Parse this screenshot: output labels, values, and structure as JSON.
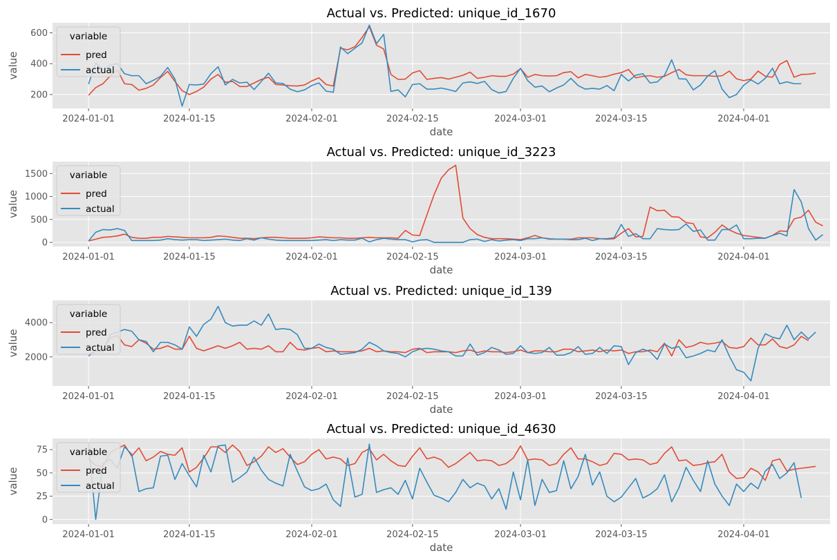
{
  "chart_data": [
    {
      "type": "line",
      "title": "Actual vs. Predicted: unique_id_1670",
      "xlabel": "date",
      "ylabel": "value",
      "x_start": "2024-01-01",
      "x_range": [
        "2023-12-27",
        "2024-04-13"
      ],
      "ylim": [
        110,
        665
      ],
      "yticks": [
        200,
        400,
        600
      ],
      "grid": true,
      "legend": {
        "title": "variable",
        "position": "top-left"
      },
      "series": [
        {
          "name": "pred",
          "color": "#E24A33",
          "values": [
            195,
            245,
            270,
            320,
            360,
            270,
            265,
            228,
            240,
            262,
            310,
            350,
            285,
            225,
            200,
            220,
            248,
            300,
            330,
            280,
            285,
            252,
            252,
            275,
            298,
            312,
            265,
            262,
            257,
            255,
            262,
            288,
            308,
            265,
            255,
            500,
            490,
            510,
            570,
            640,
            520,
            495,
            330,
            298,
            300,
            340,
            355,
            298,
            305,
            310,
            300,
            312,
            325,
            345,
            305,
            312,
            322,
            318,
            318,
            332,
            368,
            312,
            330,
            322,
            320,
            322,
            342,
            348,
            308,
            330,
            322,
            312,
            318,
            332,
            342,
            362,
            308,
            318,
            322,
            312,
            318,
            342,
            362,
            328,
            322,
            322,
            322,
            318,
            322,
            352,
            302,
            290,
            300,
            352,
            318,
            312,
            395,
            420,
            312,
            330,
            332,
            338
          ]
        },
        {
          "name": "actual",
          "color": "#348ABD",
          "values": [
            268,
            405,
            360,
            390,
            400,
            335,
            322,
            322,
            270,
            292,
            318,
            375,
            300,
            125,
            265,
            262,
            268,
            335,
            380,
            262,
            298,
            275,
            280,
            232,
            285,
            338,
            275,
            272,
            235,
            218,
            230,
            258,
            275,
            222,
            215,
            508,
            465,
            500,
            535,
            650,
            530,
            590,
            220,
            230,
            185,
            265,
            270,
            235,
            235,
            242,
            232,
            220,
            275,
            282,
            272,
            285,
            232,
            210,
            220,
            305,
            370,
            290,
            248,
            255,
            218,
            242,
            262,
            305,
            258,
            235,
            240,
            235,
            258,
            225,
            330,
            288,
            325,
            335,
            275,
            282,
            325,
            425,
            302,
            300,
            230,
            262,
            320,
            355,
            235,
            180,
            200,
            260,
            295,
            268,
            305,
            370,
            270,
            282,
            270,
            270
          ]
        }
      ]
    },
    {
      "type": "line",
      "title": "Actual vs. Predicted: unique_id_3223",
      "xlabel": "date",
      "ylabel": "value",
      "x_start": "2024-01-01",
      "x_range": [
        "2023-12-27",
        "2024-04-13"
      ],
      "ylim": [
        -90,
        1760
      ],
      "yticks": [
        0,
        500,
        1000,
        1500
      ],
      "grid": true,
      "legend": {
        "title": "variable",
        "position": "top-left"
      },
      "series": [
        {
          "name": "pred",
          "color": "#E24A33",
          "values": [
            30,
            70,
            110,
            120,
            140,
            180,
            110,
            90,
            90,
            110,
            110,
            130,
            120,
            110,
            100,
            100,
            100,
            110,
            140,
            130,
            110,
            90,
            90,
            80,
            100,
            110,
            110,
            100,
            90,
            90,
            90,
            100,
            120,
            110,
            100,
            100,
            90,
            90,
            100,
            110,
            100,
            100,
            100,
            90,
            260,
            160,
            150,
            600,
            1040,
            1400,
            1580,
            1680,
            530,
            300,
            170,
            110,
            80,
            80,
            80,
            70,
            60,
            100,
            150,
            100,
            80,
            70,
            70,
            70,
            100,
            100,
            100,
            80,
            70,
            80,
            200,
            300,
            120,
            130,
            770,
            690,
            700,
            560,
            550,
            430,
            410,
            120,
            100,
            220,
            380,
            270,
            200,
            150,
            130,
            110,
            90,
            150,
            250,
            240,
            510,
            550,
            700,
            440,
            360
          ]
        },
        {
          "name": "actual",
          "color": "#348ABD",
          "values": [
            30,
            220,
            280,
            270,
            300,
            260,
            40,
            40,
            40,
            40,
            50,
            80,
            60,
            50,
            60,
            60,
            40,
            50,
            60,
            70,
            50,
            40,
            80,
            50,
            100,
            70,
            50,
            40,
            40,
            40,
            40,
            40,
            50,
            60,
            40,
            60,
            50,
            50,
            90,
            10,
            60,
            90,
            70,
            60,
            60,
            10,
            50,
            60,
            0,
            0,
            0,
            0,
            0,
            60,
            70,
            20,
            60,
            30,
            50,
            60,
            40,
            80,
            80,
            100,
            70,
            70,
            70,
            60,
            60,
            90,
            40,
            80,
            80,
            100,
            390,
            130,
            190,
            80,
            80,
            300,
            280,
            270,
            280,
            400,
            240,
            270,
            50,
            50,
            280,
            280,
            380,
            80,
            80,
            90,
            90,
            150,
            200,
            140,
            1150,
            880,
            300,
            50,
            170
          ]
        }
      ]
    },
    {
      "type": "line",
      "title": "Actual vs. Predicted: unique_id_139",
      "xlabel": "date",
      "ylabel": "value",
      "x_start": "2024-01-01",
      "x_range": [
        "2023-12-27",
        "2024-04-13"
      ],
      "ylim": [
        300,
        5300
      ],
      "yticks": [
        2000,
        4000
      ],
      "grid": true,
      "legend": {
        "title": "variable",
        "position": "top-left"
      },
      "series": [
        {
          "name": "pred",
          "color": "#E24A33",
          "values": [
            2150,
            2350,
            2450,
            3100,
            3250,
            2700,
            2600,
            3000,
            2800,
            2450,
            2500,
            2650,
            2450,
            2450,
            3200,
            2500,
            2350,
            2500,
            2650,
            2500,
            2650,
            2850,
            2450,
            2500,
            2450,
            2650,
            2300,
            2300,
            2850,
            2450,
            2400,
            2500,
            2550,
            2300,
            2350,
            2300,
            2300,
            2300,
            2350,
            2500,
            2300,
            2350,
            2300,
            2300,
            2250,
            2450,
            2500,
            2250,
            2300,
            2300,
            2300,
            2250,
            2350,
            2400,
            2250,
            2350,
            2300,
            2300,
            2250,
            2300,
            2400,
            2250,
            2350,
            2350,
            2300,
            2300,
            2450,
            2450,
            2300,
            2350,
            2400,
            2300,
            2400,
            2350,
            2400,
            2200,
            2300,
            2300,
            2400,
            2300,
            2800,
            2050,
            3000,
            2550,
            2650,
            2850,
            2750,
            2800,
            2900,
            2550,
            2500,
            2600,
            3100,
            2700,
            2700,
            3050,
            2600,
            2500,
            2700,
            3200,
            2950
          ]
        },
        {
          "name": "actual",
          "color": "#348ABD",
          "values": [
            2050,
            2350,
            2300,
            3300,
            3450,
            3600,
            3500,
            3000,
            2900,
            2300,
            2850,
            2850,
            2700,
            2450,
            3750,
            3200,
            3900,
            4200,
            4950,
            4000,
            3800,
            3850,
            3850,
            4100,
            3850,
            4500,
            3600,
            3650,
            3600,
            3300,
            2500,
            2500,
            2750,
            2550,
            2450,
            2150,
            2200,
            2250,
            2450,
            2850,
            2650,
            2350,
            2250,
            2200,
            2000,
            2300,
            2450,
            2500,
            2450,
            2350,
            2300,
            2050,
            2050,
            2750,
            2100,
            2250,
            2550,
            2400,
            2150,
            2200,
            2650,
            2250,
            2200,
            2250,
            2550,
            2100,
            2100,
            2250,
            2600,
            2150,
            2200,
            2550,
            2200,
            2650,
            2600,
            1550,
            2250,
            2450,
            2300,
            1850,
            2750,
            2500,
            2600,
            1950,
            2050,
            2200,
            2400,
            2300,
            3000,
            2050,
            1250,
            1100,
            600,
            2500,
            3350,
            3150,
            3050,
            3850,
            3000,
            3450,
            3050,
            3450
          ]
        }
      ]
    },
    {
      "type": "line",
      "title": "Actual vs. Predicted: unique_id_4630",
      "xlabel": "date",
      "ylabel": "value",
      "x_start": "2024-01-01",
      "x_range": [
        "2023-12-27",
        "2024-04-13"
      ],
      "ylim": [
        -5,
        87
      ],
      "yticks": [
        0,
        25,
        50,
        75
      ],
      "grid": true,
      "legend": {
        "title": "variable",
        "position": "top-left"
      },
      "series": [
        {
          "name": "pred",
          "color": "#E24A33",
          "values": [
            65,
            58,
            57,
            72,
            76,
            80,
            68,
            77,
            63,
            67,
            73,
            70,
            69,
            77,
            51,
            56,
            66,
            78,
            78,
            72,
            80,
            73,
            58,
            62,
            68,
            78,
            72,
            76,
            67,
            59,
            62,
            70,
            75,
            65,
            67,
            65,
            58,
            60,
            72,
            76,
            64,
            70,
            63,
            58,
            57,
            68,
            77,
            65,
            67,
            64,
            56,
            60,
            66,
            72,
            63,
            64,
            63,
            58,
            60,
            66,
            79,
            64,
            65,
            64,
            58,
            60,
            70,
            77,
            65,
            65,
            62,
            58,
            60,
            71,
            70,
            64,
            65,
            64,
            59,
            61,
            71,
            78,
            63,
            64,
            58,
            59,
            61,
            62,
            70,
            51,
            44,
            45,
            55,
            51,
            42,
            63,
            65,
            52,
            54,
            55,
            56,
            57
          ]
        },
        {
          "name": "actual",
          "color": "#348ABD",
          "values": [
            82,
            0,
            60,
            65,
            55,
            78,
            70,
            30,
            33,
            34,
            68,
            69,
            43,
            60,
            47,
            35,
            69,
            51,
            79,
            80,
            40,
            45,
            51,
            67,
            53,
            43,
            39,
            36,
            70,
            52,
            35,
            31,
            33,
            38,
            21,
            14,
            66,
            24,
            27,
            81,
            29,
            32,
            34,
            27,
            42,
            22,
            55,
            40,
            26,
            23,
            19,
            29,
            43,
            34,
            39,
            36,
            22,
            33,
            11,
            51,
            21,
            64,
            15,
            43,
            29,
            31,
            63,
            33,
            46,
            70,
            37,
            51,
            25,
            19,
            24,
            34,
            44,
            23,
            27,
            33,
            48,
            19,
            34,
            56,
            42,
            30,
            63,
            38,
            25,
            15,
            38,
            30,
            39,
            33,
            52,
            59,
            44,
            50,
            61,
            23
          ]
        }
      ]
    }
  ],
  "xticks": [
    {
      "date": "2024-01-01",
      "label": "2024-01-01"
    },
    {
      "date": "2024-01-15",
      "label": "2024-01-15"
    },
    {
      "date": "2024-02-01",
      "label": "2024-02-01"
    },
    {
      "date": "2024-02-15",
      "label": "2024-02-15"
    },
    {
      "date": "2024-03-01",
      "label": "2024-03-01"
    },
    {
      "date": "2024-03-15",
      "label": "2024-03-15"
    },
    {
      "date": "2024-04-01",
      "label": "2024-04-01"
    }
  ]
}
